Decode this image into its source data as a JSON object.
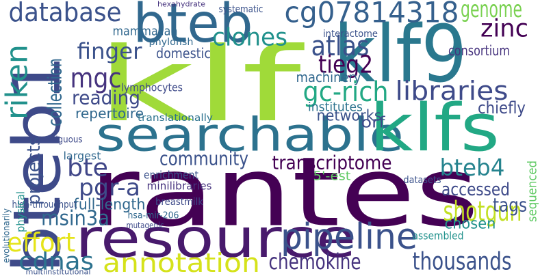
{
  "words": [
    "rantes",
    "resource",
    "searchable",
    "klf",
    "klf9",
    "klfs",
    "bteb1",
    "bteb",
    "cg07814318",
    "database",
    "genome",
    "pipeline",
    "annotation",
    "cdnas",
    "thousands",
    "chemokine",
    "shotgun",
    "effort",
    "msin3a",
    "pgr-a",
    "bte",
    "full-length",
    "community",
    "transcriptome",
    "bteb4",
    "riken",
    "projects",
    "collection",
    "mgc",
    "finger",
    "reading",
    "repertoire",
    "libraries",
    "gc-rich",
    "atlas",
    "tieg2",
    "clones",
    "zinc",
    "consortium",
    "interactome",
    "machinery",
    "networks",
    "institutes",
    "chiefly",
    "accessed",
    "tags",
    "sequenced",
    "chosen",
    "5'-est",
    "lymphocytes",
    "mammalian",
    "domestic",
    "translationally",
    "enrichment",
    "minilibraries",
    "breastmilk",
    "hsa-mir-206",
    "high-throughput",
    "physical",
    "evolutionarily",
    "orf",
    "datasets",
    "largest",
    "contiguous",
    "multiinstitutional",
    "phylofish",
    "systematic",
    "hexahydrate",
    "assembled",
    "mutagenic"
  ]
}
